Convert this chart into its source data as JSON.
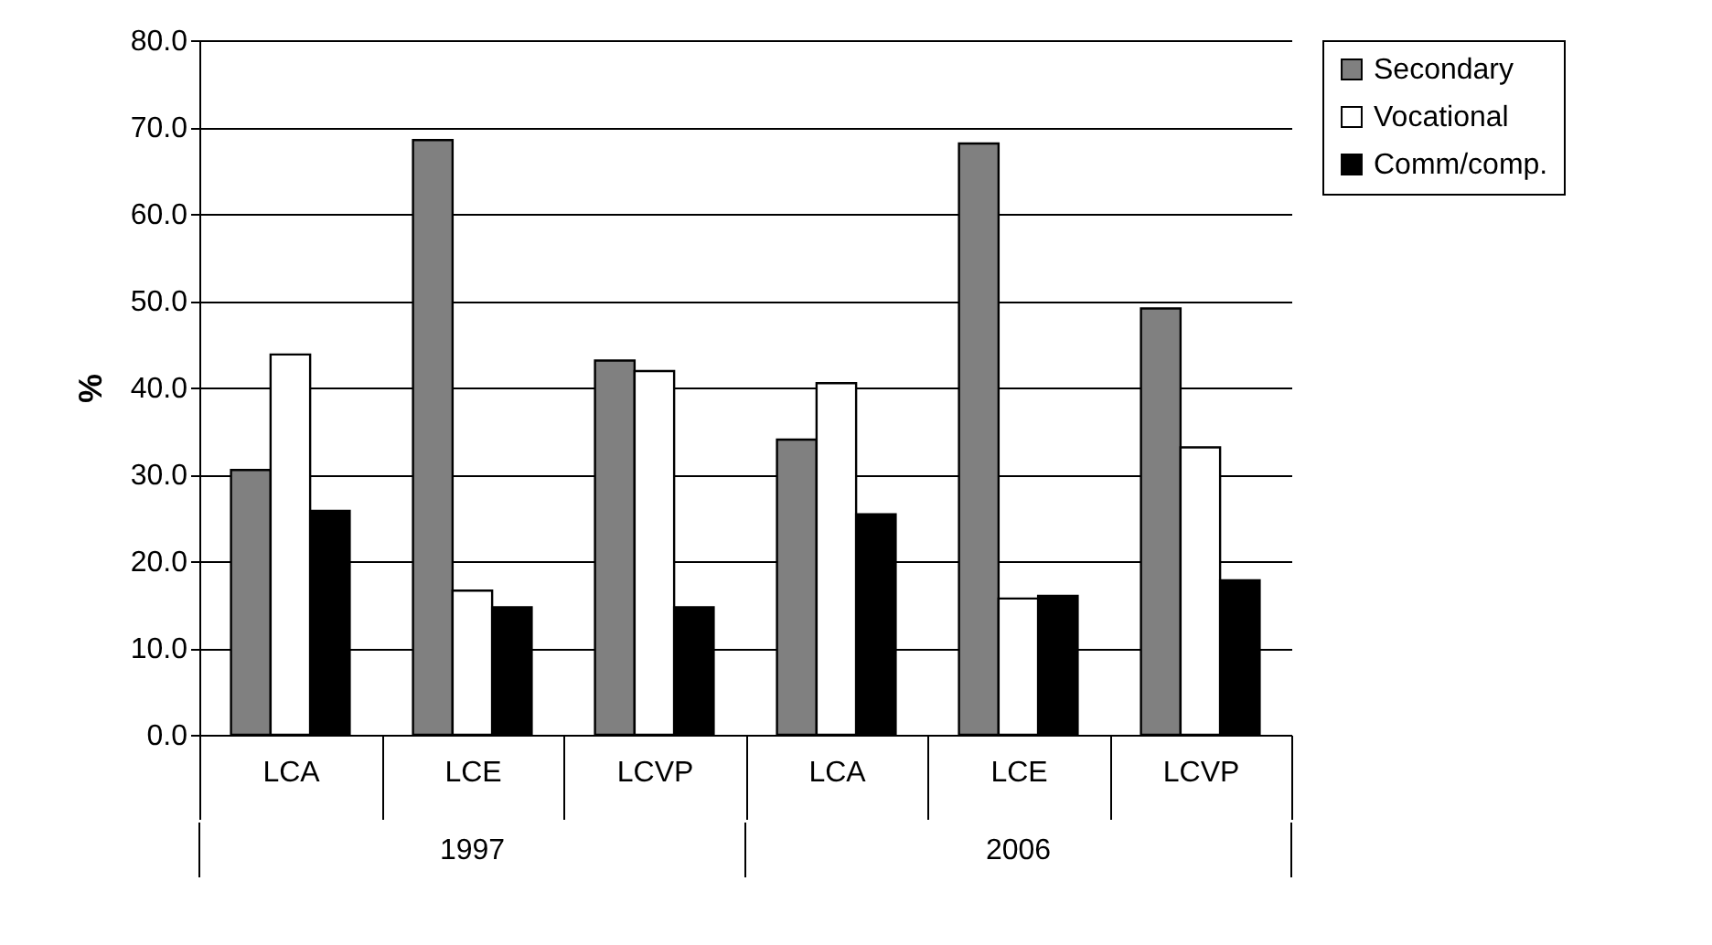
{
  "chart_data": {
    "type": "bar",
    "ylabel": "%",
    "categories": [
      "LCA",
      "LCE",
      "LCVP",
      "LCA",
      "LCE",
      "LCVP"
    ],
    "series": [
      {
        "name": "Secondary",
        "color": "#808080",
        "values": [
          30.5,
          68.5,
          43.1,
          34.0,
          68.1,
          49.1
        ]
      },
      {
        "name": "Vocational",
        "color": "#ffffff",
        "values": [
          43.8,
          16.6,
          41.9,
          40.5,
          15.7,
          33.1
        ]
      },
      {
        "name": "Comm/comp.",
        "color": "#000000",
        "values": [
          25.8,
          14.7,
          14.7,
          25.4,
          16.0,
          17.8
        ]
      }
    ],
    "ylim": [
      0,
      80
    ],
    "yticks": [
      {
        "value": 0,
        "label": "0.0"
      },
      {
        "value": 10,
        "label": "10.0"
      },
      {
        "value": 20,
        "label": "20.0"
      },
      {
        "value": 30,
        "label": "30.0"
      },
      {
        "value": 40,
        "label": "40.0"
      },
      {
        "value": 50,
        "label": "50.0"
      },
      {
        "value": 60,
        "label": "60.0"
      },
      {
        "value": 70,
        "label": "70.0"
      },
      {
        "value": 80,
        "label": "80.0"
      }
    ],
    "annotations": [
      "1997",
      "2006"
    ],
    "grid": "y",
    "legend": "right"
  }
}
